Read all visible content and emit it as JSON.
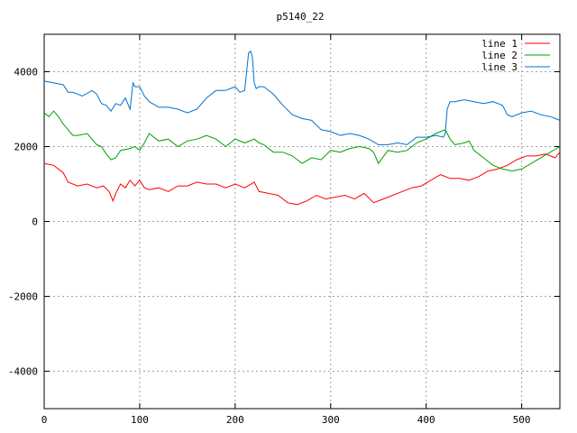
{
  "chart_data": {
    "type": "line",
    "title": "p5140_22",
    "xlabel": "",
    "ylabel": "",
    "xlim": [
      0,
      540
    ],
    "ylim": [
      -5000,
      5000
    ],
    "xticks": [
      0,
      100,
      200,
      300,
      400,
      500
    ],
    "yticks": [
      -4000,
      -2000,
      0,
      2000,
      4000
    ],
    "grid": true,
    "legend_position": "top-right",
    "series": [
      {
        "name": "line 1",
        "color": "#ff0000",
        "x": [
          0,
          10,
          20,
          25,
          35,
          45,
          55,
          62,
          68,
          72,
          75,
          80,
          85,
          90,
          95,
          100,
          105,
          110,
          120,
          130,
          140,
          150,
          160,
          170,
          180,
          190,
          200,
          210,
          220,
          225,
          235,
          245,
          255,
          265,
          275,
          285,
          295,
          305,
          315,
          325,
          335,
          345,
          355,
          365,
          375,
          385,
          395,
          405,
          415,
          425,
          435,
          445,
          455,
          465,
          475,
          485,
          495,
          505,
          515,
          525,
          535,
          540
        ],
        "values": [
          1550,
          1500,
          1300,
          1050,
          950,
          1000,
          900,
          950,
          800,
          550,
          750,
          1000,
          900,
          1100,
          950,
          1100,
          900,
          850,
          900,
          800,
          950,
          950,
          1050,
          1000,
          1000,
          900,
          1000,
          900,
          1050,
          800,
          750,
          700,
          500,
          450,
          550,
          700,
          600,
          650,
          700,
          600,
          750,
          500,
          600,
          700,
          800,
          900,
          950,
          1100,
          1250,
          1150,
          1150,
          1100,
          1200,
          1350,
          1400,
          1500,
          1650,
          1750,
          1750,
          1800,
          1700,
          1850
        ]
      },
      {
        "name": "line 2",
        "color": "#00a000",
        "x": [
          0,
          5,
          10,
          15,
          20,
          25,
          30,
          35,
          45,
          55,
          60,
          65,
          70,
          75,
          80,
          90,
          95,
          100,
          105,
          110,
          120,
          130,
          140,
          150,
          160,
          170,
          180,
          190,
          200,
          210,
          220,
          225,
          230,
          240,
          250,
          260,
          270,
          280,
          290,
          300,
          310,
          320,
          330,
          340,
          345,
          350,
          360,
          370,
          380,
          390,
          400,
          410,
          420,
          425,
          430,
          440,
          445,
          450,
          460,
          470,
          480,
          490,
          500,
          510,
          520,
          530,
          540
        ],
        "values": [
          2900,
          2800,
          2950,
          2800,
          2600,
          2450,
          2300,
          2300,
          2350,
          2050,
          2000,
          1800,
          1650,
          1700,
          1900,
          1950,
          2000,
          1900,
          2100,
          2350,
          2150,
          2200,
          2000,
          2150,
          2200,
          2300,
          2200,
          2000,
          2200,
          2100,
          2200,
          2100,
          2050,
          1850,
          1850,
          1750,
          1550,
          1700,
          1650,
          1900,
          1850,
          1950,
          2000,
          1950,
          1850,
          1550,
          1900,
          1850,
          1900,
          2100,
          2200,
          2350,
          2450,
          2200,
          2050,
          2100,
          2150,
          1900,
          1700,
          1500,
          1400,
          1350,
          1400,
          1550,
          1700,
          1850,
          2000
        ]
      },
      {
        "name": "line 3",
        "color": "#0070d0",
        "x": [
          0,
          10,
          20,
          25,
          30,
          40,
          50,
          55,
          60,
          65,
          70,
          75,
          80,
          85,
          90,
          93,
          95,
          100,
          105,
          110,
          120,
          130,
          140,
          150,
          160,
          170,
          180,
          190,
          200,
          205,
          210,
          214,
          216,
          218,
          220,
          222,
          225,
          230,
          240,
          250,
          260,
          270,
          280,
          290,
          300,
          310,
          320,
          330,
          340,
          350,
          360,
          370,
          380,
          390,
          400,
          410,
          418,
          420,
          422,
          425,
          430,
          440,
          450,
          460,
          470,
          480,
          485,
          490,
          500,
          510,
          520,
          530,
          540
        ],
        "values": [
          3750,
          3700,
          3650,
          3450,
          3450,
          3350,
          3500,
          3400,
          3150,
          3100,
          2950,
          3150,
          3100,
          3300,
          3000,
          3700,
          3600,
          3600,
          3350,
          3200,
          3050,
          3050,
          3000,
          2900,
          3000,
          3300,
          3500,
          3500,
          3600,
          3450,
          3500,
          4500,
          4550,
          4400,
          3700,
          3550,
          3600,
          3600,
          3400,
          3100,
          2850,
          2750,
          2700,
          2450,
          2400,
          2300,
          2350,
          2300,
          2200,
          2050,
          2050,
          2100,
          2050,
          2250,
          2250,
          2300,
          2250,
          2350,
          3000,
          3200,
          3200,
          3250,
          3200,
          3150,
          3200,
          3100,
          2850,
          2800,
          2900,
          2950,
          2850,
          2800,
          2700
        ]
      }
    ]
  }
}
